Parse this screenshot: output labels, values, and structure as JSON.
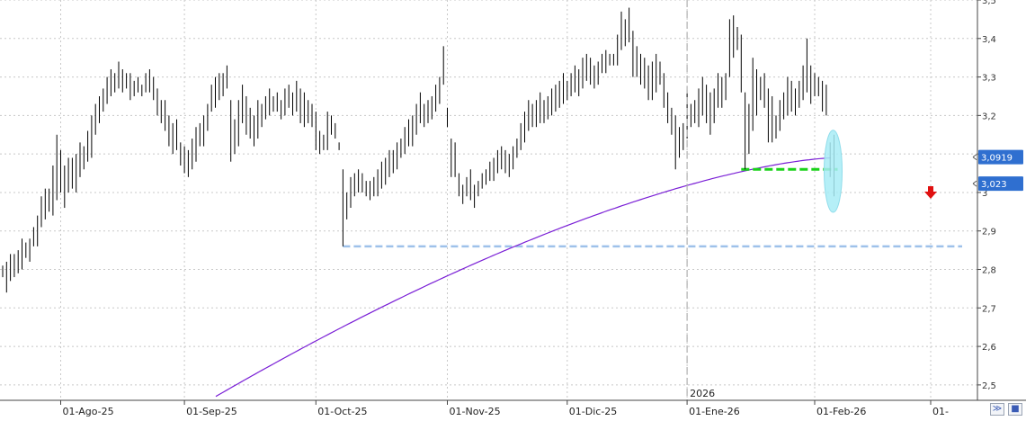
{
  "chart_data": {
    "type": "ohlc",
    "ylim": [
      2.46,
      3.5
    ],
    "y_ticks": [
      "3,5",
      "3,4",
      "3,3",
      "3,2",
      "3,1",
      "3",
      "2,9",
      "2,8",
      "2,7",
      "2,6",
      "2,5"
    ],
    "y_tick_values": [
      3.5,
      3.4,
      3.3,
      3.2,
      3.1,
      3.0,
      2.9,
      2.8,
      2.7,
      2.6,
      2.5
    ],
    "x_ticks": [
      "01-Ago-25",
      "01-Sep-25",
      "01-Oct-25",
      "01-Nov-25",
      "01-Dic-25",
      "01-Ene-26",
      "01-Feb-26",
      "01-"
    ],
    "x_tick_bar_index": [
      15,
      47,
      81,
      115,
      146,
      177,
      210,
      240
    ],
    "year_label": "2026",
    "year_bar_index": 177,
    "grid": true,
    "colors": {
      "bars": "#000000",
      "ma": "#7a1fd6",
      "support": "#9ec1ea",
      "green_level": "#19d219",
      "arrow": "#e01010",
      "badge": "#2f6fd0",
      "highlight": "#a8ecf6"
    },
    "bars": [
      [
        2.81,
        2.78
      ],
      [
        2.82,
        2.74
      ],
      [
        2.84,
        2.77
      ],
      [
        2.84,
        2.78
      ],
      [
        2.85,
        2.79
      ],
      [
        2.88,
        2.8
      ],
      [
        2.87,
        2.83
      ],
      [
        2.88,
        2.82
      ],
      [
        2.91,
        2.86
      ],
      [
        2.94,
        2.86
      ],
      [
        2.99,
        2.91
      ],
      [
        3.01,
        2.93
      ],
      [
        3.01,
        2.95
      ],
      [
        3.07,
        2.94
      ],
      [
        3.15,
        2.98
      ],
      [
        3.11,
        3.0
      ],
      [
        3.07,
        2.96
      ],
      [
        3.09,
        3.0
      ],
      [
        3.09,
        3.01
      ],
      [
        3.1,
        3.0
      ],
      [
        3.13,
        3.04
      ],
      [
        3.12,
        3.06
      ],
      [
        3.16,
        3.08
      ],
      [
        3.2,
        3.09
      ],
      [
        3.23,
        3.15
      ],
      [
        3.25,
        3.18
      ],
      [
        3.27,
        3.21
      ],
      [
        3.3,
        3.23
      ],
      [
        3.32,
        3.25
      ],
      [
        3.31,
        3.26
      ],
      [
        3.34,
        3.27
      ],
      [
        3.32,
        3.26
      ],
      [
        3.31,
        3.27
      ],
      [
        3.31,
        3.24
      ],
      [
        3.29,
        3.25
      ],
      [
        3.3,
        3.26
      ],
      [
        3.28,
        3.25
      ],
      [
        3.31,
        3.26
      ],
      [
        3.32,
        3.26
      ],
      [
        3.3,
        3.24
      ],
      [
        3.27,
        3.2
      ],
      [
        3.24,
        3.18
      ],
      [
        3.24,
        3.16
      ],
      [
        3.2,
        3.12
      ],
      [
        3.18,
        3.1
      ],
      [
        3.19,
        3.11
      ],
      [
        3.13,
        3.07
      ],
      [
        3.12,
        3.05
      ],
      [
        3.11,
        3.04
      ],
      [
        3.14,
        3.06
      ],
      [
        3.17,
        3.08
      ],
      [
        3.18,
        3.12
      ],
      [
        3.2,
        3.12
      ],
      [
        3.23,
        3.16
      ],
      [
        3.28,
        3.21
      ],
      [
        3.3,
        3.22
      ],
      [
        3.31,
        3.24
      ],
      [
        3.31,
        3.25
      ],
      [
        3.33,
        3.27
      ],
      [
        3.24,
        3.08
      ],
      [
        3.19,
        3.1
      ],
      [
        3.24,
        3.12
      ],
      [
        3.28,
        3.18
      ],
      [
        3.25,
        3.15
      ],
      [
        3.22,
        3.14
      ],
      [
        3.2,
        3.12
      ],
      [
        3.24,
        3.14
      ],
      [
        3.23,
        3.17
      ],
      [
        3.25,
        3.19
      ],
      [
        3.27,
        3.2
      ],
      [
        3.25,
        3.21
      ],
      [
        3.26,
        3.21
      ],
      [
        3.24,
        3.19
      ],
      [
        3.27,
        3.2
      ],
      [
        3.28,
        3.22
      ],
      [
        3.26,
        3.2
      ],
      [
        3.29,
        3.21
      ],
      [
        3.27,
        3.18
      ],
      [
        3.26,
        3.17
      ],
      [
        3.24,
        3.18
      ],
      [
        3.23,
        3.17
      ],
      [
        3.21,
        3.11
      ],
      [
        3.16,
        3.1
      ],
      [
        3.15,
        3.11
      ],
      [
        3.21,
        3.11
      ],
      [
        3.2,
        3.15
      ],
      [
        3.18,
        3.14
      ],
      [
        3.13,
        3.11
      ],
      [
        3.06,
        2.86
      ],
      [
        3.0,
        2.93
      ],
      [
        3.04,
        2.96
      ],
      [
        3.05,
        2.99
      ],
      [
        3.06,
        3.0
      ],
      [
        3.05,
        3.0
      ],
      [
        3.03,
        2.99
      ],
      [
        3.03,
        2.98
      ],
      [
        3.04,
        2.99
      ],
      [
        3.06,
        2.99
      ],
      [
        3.08,
        3.01
      ],
      [
        3.09,
        3.02
      ],
      [
        3.11,
        3.04
      ],
      [
        3.11,
        3.05
      ],
      [
        3.13,
        3.06
      ],
      [
        3.14,
        3.09
      ],
      [
        3.17,
        3.1
      ],
      [
        3.19,
        3.12
      ],
      [
        3.2,
        3.12
      ],
      [
        3.23,
        3.15
      ],
      [
        3.26,
        3.18
      ],
      [
        3.23,
        3.17
      ],
      [
        3.24,
        3.18
      ],
      [
        3.25,
        3.19
      ],
      [
        3.28,
        3.21
      ],
      [
        3.3,
        3.23
      ],
      [
        3.38,
        3.28
      ],
      [
        3.22,
        3.17
      ],
      [
        3.14,
        3.04
      ],
      [
        3.13,
        3.04
      ],
      [
        3.05,
        2.99
      ],
      [
        3.02,
        2.97
      ],
      [
        3.04,
        2.99
      ],
      [
        3.06,
        2.98
      ],
      [
        3.02,
        2.96
      ],
      [
        3.03,
        2.99
      ],
      [
        3.05,
        3.01
      ],
      [
        3.06,
        3.02
      ],
      [
        3.08,
        3.03
      ],
      [
        3.09,
        3.03
      ],
      [
        3.11,
        3.05
      ],
      [
        3.12,
        3.06
      ],
      [
        3.11,
        3.05
      ],
      [
        3.1,
        3.04
      ],
      [
        3.12,
        3.06
      ],
      [
        3.14,
        3.09
      ],
      [
        3.18,
        3.11
      ],
      [
        3.21,
        3.13
      ],
      [
        3.24,
        3.16
      ],
      [
        3.23,
        3.17
      ],
      [
        3.24,
        3.17
      ],
      [
        3.26,
        3.18
      ],
      [
        3.24,
        3.18
      ],
      [
        3.25,
        3.19
      ],
      [
        3.27,
        3.2
      ],
      [
        3.28,
        3.21
      ],
      [
        3.29,
        3.22
      ],
      [
        3.31,
        3.23
      ],
      [
        3.29,
        3.24
      ],
      [
        3.31,
        3.25
      ],
      [
        3.33,
        3.26
      ],
      [
        3.32,
        3.25
      ],
      [
        3.35,
        3.27
      ],
      [
        3.36,
        3.29
      ],
      [
        3.35,
        3.28
      ],
      [
        3.33,
        3.27
      ],
      [
        3.34,
        3.28
      ],
      [
        3.36,
        3.31
      ],
      [
        3.37,
        3.31
      ],
      [
        3.36,
        3.33
      ],
      [
        3.36,
        3.33
      ],
      [
        3.41,
        3.33
      ],
      [
        3.47,
        3.37
      ],
      [
        3.45,
        3.38
      ],
      [
        3.48,
        3.39
      ],
      [
        3.42,
        3.3
      ],
      [
        3.38,
        3.3
      ],
      [
        3.36,
        3.28
      ],
      [
        3.35,
        3.27
      ],
      [
        3.33,
        3.24
      ],
      [
        3.34,
        3.24
      ],
      [
        3.36,
        3.26
      ],
      [
        3.34,
        3.28
      ],
      [
        3.31,
        3.22
      ],
      [
        3.26,
        3.18
      ],
      [
        3.22,
        3.15
      ],
      [
        3.2,
        3.06
      ],
      [
        3.17,
        3.09
      ],
      [
        3.18,
        3.11
      ],
      [
        3.26,
        3.14
      ],
      [
        3.23,
        3.17
      ],
      [
        3.24,
        3.18
      ],
      [
        3.27,
        3.17
      ],
      [
        3.3,
        3.2
      ],
      [
        3.28,
        3.18
      ],
      [
        3.26,
        3.15
      ],
      [
        3.27,
        3.18
      ],
      [
        3.31,
        3.22
      ],
      [
        3.3,
        3.22
      ],
      [
        3.31,
        3.24
      ],
      [
        3.45,
        3.3
      ],
      [
        3.46,
        3.35
      ],
      [
        3.43,
        3.37
      ],
      [
        3.41,
        3.26
      ],
      [
        3.26,
        3.06
      ],
      [
        3.23,
        3.1
      ],
      [
        3.35,
        3.16
      ],
      [
        3.32,
        3.2
      ],
      [
        3.3,
        3.24
      ],
      [
        3.31,
        3.22
      ],
      [
        3.27,
        3.13
      ],
      [
        3.25,
        3.13
      ],
      [
        3.2,
        3.14
      ],
      [
        3.24,
        3.16
      ],
      [
        3.26,
        3.19
      ],
      [
        3.3,
        3.2
      ],
      [
        3.29,
        3.21
      ],
      [
        3.27,
        3.2
      ],
      [
        3.29,
        3.22
      ],
      [
        3.33,
        3.24
      ],
      [
        3.4,
        3.26
      ],
      [
        3.33,
        3.23
      ],
      [
        3.31,
        3.25
      ],
      [
        3.3,
        3.25
      ],
      [
        3.29,
        3.21
      ],
      [
        3.28,
        3.2
      ],
      [
        3.13,
        3.04
      ],
      [
        3.15,
        2.99
      ]
    ],
    "moving_average": {
      "start_value": 2.47,
      "end_value": 3.09
    },
    "support_line": {
      "value": 2.86,
      "from_bar": 88
    },
    "green_level": {
      "value": 3.06,
      "from_bar": 191
    },
    "price_labels": [
      "3,0919",
      "3,023"
    ],
    "price_label_values": [
      3.0919,
      3.023
    ]
  }
}
